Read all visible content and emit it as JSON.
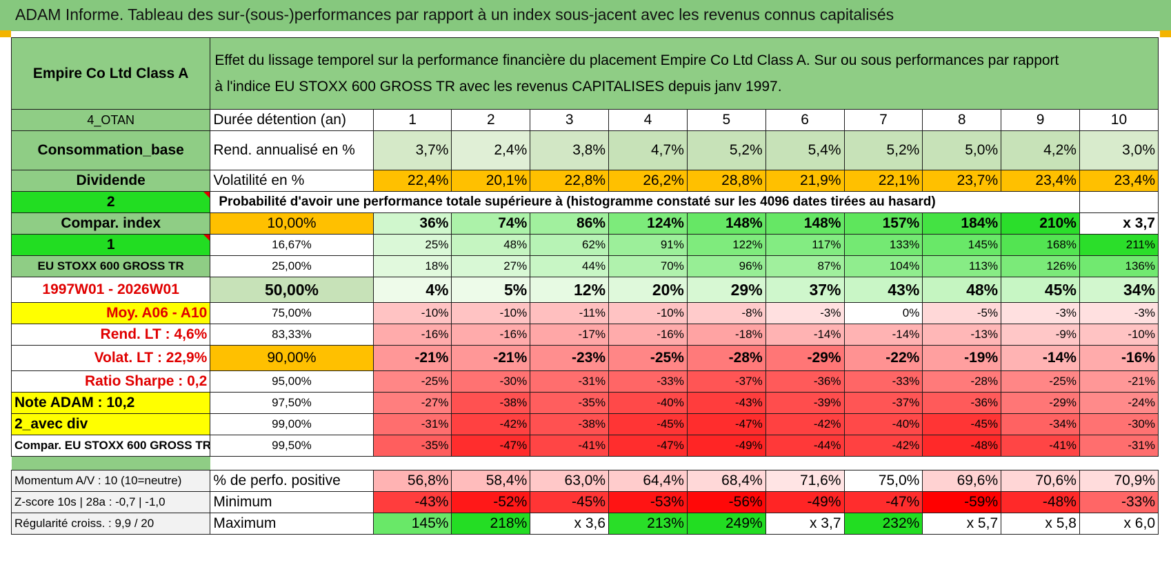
{
  "header": {
    "title": "ADAM Informe. Tableau des sur-(sous-)performances par rapport à un index sous-jacent avec les revenus connus capitalisés"
  },
  "fund": {
    "name": "Empire Co Ltd Class A",
    "description_line1": "Effet du lissage temporel sur la performance financière du placement Empire Co Ltd Class A. Sur ou sous performances par rapport",
    "description_line2": "à l'indice EU STOXX 600 GROSS TR avec les revenus CAPITALISES depuis janv 1997."
  },
  "left": {
    "r1": "4_OTAN",
    "r2": "Consommation_base",
    "r3": "Dividende",
    "r4": "2",
    "r5": "Compar. index",
    "r6": "1",
    "r7": "EU STOXX 600 GROSS TR",
    "r8": "1997W01 - 2026W01",
    "r9": "Moy. A06 - A10",
    "r10": "Rend. LT :    4,6%",
    "r11": "Volat. LT :    22,9%",
    "r12": "Ratio Sharpe :     0,2",
    "r13": "Note ADAM : 10,2",
    "r14": "2_avec div",
    "r15": "Compar. EU STOXX 600 GROSS TR",
    "b1": "Momentum A/V : 10 (10=neutre)",
    "b2": "Z-score 10s | 28a : -0,7 | -1,0",
    "b3": "Régularité croiss. : 9,9 / 20"
  },
  "labels": {
    "duration": "Durée détention (an)",
    "rend": "Rend. annualisé en %",
    "vol": "Volatilité en %",
    "prob": "Probabilité d'avoir une performance totale supérieure à (histogramme constaté sur les 4096 dates tirées au hasard)",
    "positive": "% de perfo. positive",
    "minimum": "Minimum",
    "maximum": "Maximum"
  },
  "years": [
    "1",
    "2",
    "3",
    "4",
    "5",
    "6",
    "7",
    "8",
    "9",
    "10"
  ],
  "rend": [
    "3,7%",
    "2,4%",
    "3,8%",
    "4,7%",
    "5,2%",
    "5,4%",
    "5,2%",
    "5,0%",
    "4,2%",
    "3,0%"
  ],
  "vol": [
    "22,4%",
    "20,1%",
    "22,8%",
    "26,2%",
    "28,8%",
    "21,9%",
    "22,1%",
    "23,7%",
    "23,4%",
    "23,4%"
  ],
  "percentiles": [
    {
      "p": "10,00%",
      "v": [
        "36%",
        "74%",
        "86%",
        "124%",
        "148%",
        "148%",
        "157%",
        "184%",
        "210%",
        "x 3,7"
      ]
    },
    {
      "p": "16,67%",
      "v": [
        "25%",
        "48%",
        "62%",
        "91%",
        "122%",
        "117%",
        "133%",
        "145%",
        "168%",
        "211%"
      ]
    },
    {
      "p": "25,00%",
      "v": [
        "18%",
        "27%",
        "44%",
        "70%",
        "96%",
        "87%",
        "104%",
        "113%",
        "126%",
        "136%"
      ]
    },
    {
      "p": "50,00%",
      "v": [
        "4%",
        "5%",
        "12%",
        "20%",
        "29%",
        "37%",
        "43%",
        "48%",
        "45%",
        "34%"
      ]
    },
    {
      "p": "75,00%",
      "v": [
        "-10%",
        "-10%",
        "-11%",
        "-10%",
        "-8%",
        "-3%",
        "0%",
        "-5%",
        "-3%",
        "-3%"
      ]
    },
    {
      "p": "83,33%",
      "v": [
        "-16%",
        "-16%",
        "-17%",
        "-16%",
        "-18%",
        "-14%",
        "-14%",
        "-13%",
        "-9%",
        "-10%"
      ]
    },
    {
      "p": "90,00%",
      "v": [
        "-21%",
        "-21%",
        "-23%",
        "-25%",
        "-28%",
        "-29%",
        "-22%",
        "-19%",
        "-14%",
        "-16%"
      ]
    },
    {
      "p": "95,00%",
      "v": [
        "-25%",
        "-30%",
        "-31%",
        "-33%",
        "-37%",
        "-36%",
        "-33%",
        "-28%",
        "-25%",
        "-21%"
      ]
    },
    {
      "p": "97,50%",
      "v": [
        "-27%",
        "-38%",
        "-35%",
        "-40%",
        "-43%",
        "-39%",
        "-37%",
        "-36%",
        "-29%",
        "-24%"
      ]
    },
    {
      "p": "99,00%",
      "v": [
        "-31%",
        "-42%",
        "-38%",
        "-45%",
        "-47%",
        "-42%",
        "-40%",
        "-45%",
        "-34%",
        "-30%"
      ]
    },
    {
      "p": "99,50%",
      "v": [
        "-35%",
        "-47%",
        "-41%",
        "-47%",
        "-49%",
        "-44%",
        "-42%",
        "-48%",
        "-41%",
        "-31%"
      ]
    }
  ],
  "positive": [
    "56,8%",
    "58,4%",
    "63,0%",
    "64,4%",
    "68,4%",
    "71,6%",
    "75,0%",
    "69,6%",
    "70,6%",
    "70,9%"
  ],
  "minimum": [
    "-43%",
    "-52%",
    "-45%",
    "-53%",
    "-56%",
    "-49%",
    "-47%",
    "-59%",
    "-48%",
    "-33%"
  ],
  "maximum": [
    "145%",
    "218%",
    "x 3,6",
    "213%",
    "249%",
    "x 3,7",
    "232%",
    "x 5,7",
    "x 5,8",
    "x 6,0"
  ],
  "colors": {
    "header_green": "#8fcd85",
    "light_green": "#c7e2b8",
    "orange": "#ffc000",
    "bright_green": "#22dd22",
    "yellow": "#ffff00",
    "red_text": "#e00000"
  }
}
